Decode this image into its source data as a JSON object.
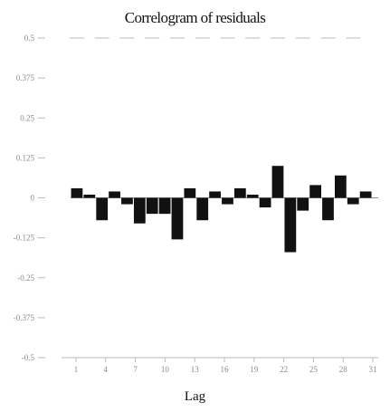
{
  "chart_data": {
    "type": "bar",
    "title": "Correlogram of residuals",
    "xlabel": "Lag",
    "ylabel": "",
    "x": [
      1,
      2,
      3,
      4,
      5,
      6,
      7,
      8,
      9,
      10,
      11,
      12,
      13,
      14,
      15,
      16,
      17,
      18,
      19,
      20,
      21,
      22,
      23,
      24
    ],
    "values": [
      0.03,
      0.01,
      -0.07,
      0.02,
      -0.02,
      -0.08,
      -0.05,
      -0.05,
      -0.13,
      0.03,
      -0.07,
      0.02,
      -0.02,
      0.03,
      0.01,
      -0.03,
      0.1,
      -0.17,
      -0.04,
      0.04,
      -0.07,
      0.07,
      -0.02,
      0.02
    ],
    "ylim": [
      -0.5,
      0.5
    ],
    "yticks": [
      "-0.5",
      "-0.375",
      "-0.25",
      "-0.125",
      "0",
      "0.125",
      "0.25",
      "0.375",
      "0.5"
    ],
    "xticks": [
      "1",
      "4",
      "7",
      "10",
      "13",
      "16",
      "19",
      "22",
      "25",
      "28",
      "31"
    ],
    "grid": false,
    "colors": {
      "bars": "#111111",
      "axis": "#bbbbbb",
      "baseline": "#888888"
    }
  }
}
